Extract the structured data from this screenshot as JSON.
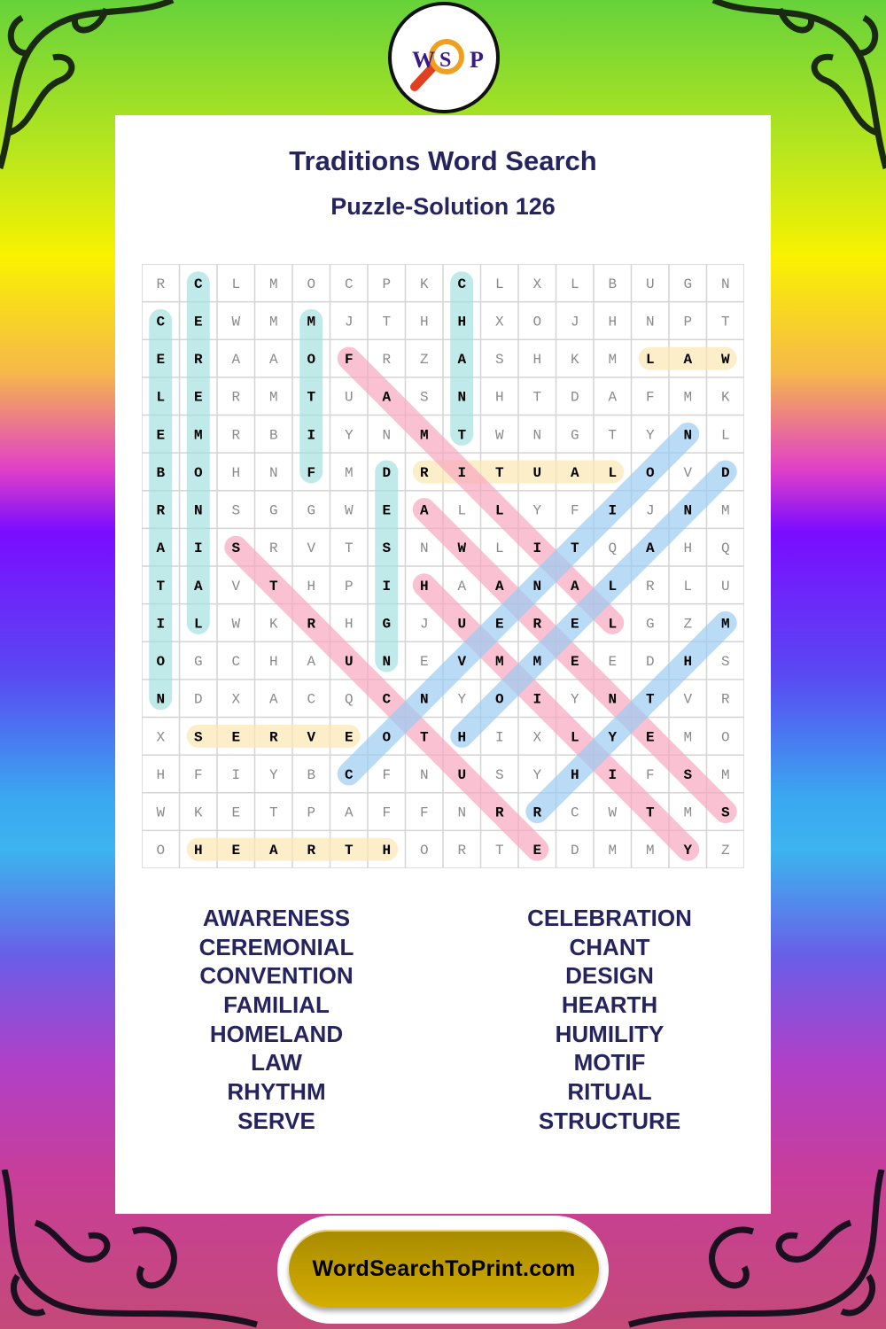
{
  "header": {
    "logo": {
      "letters": [
        "W",
        "S",
        "P"
      ],
      "icon": "magnifier-icon",
      "letter_color": "#3a1a8a",
      "ring_color": "#f0a020",
      "handle_color": "#e04020"
    },
    "title": "Traditions Word Search",
    "subtitle": "Puzzle-Solution 126"
  },
  "puzzle": {
    "rows": [
      "RCLMOCPKCLXLBUGN",
      "CEWMMJTHHXOJHNPT",
      "ERAAOFRZASHKMLAW",
      "LERMTUASNHTDAFMK",
      "EMRBIYNMTWNGTYNL",
      "BOHNFMDRITUALOVD",
      "RNSGGWEALLYFIJNM",
      "AISRVTSNWLITQAHQ",
      "TAVTHPIHAANALRLU",
      "ILWKRHGJUERELGZM",
      "OGCHAUNEVMMEEDHS",
      "NDXACQCNYOIYNTVR",
      "XSERVEOTHIXLYEMO",
      "HFIYBCFNUSYHIFSM",
      "WKETPAFFNRRCWTMS",
      "OHEARTHORTEDMMYZ"
    ],
    "highlight_colors": {
      "teal": "#a6e0e0",
      "yellow": "#fde7b4",
      "pink": "#f7a8c0",
      "blue": "#9cccf2"
    },
    "solutions": [
      {
        "word": "CELEBRATION",
        "start": [
          2,
          1
        ],
        "end": [
          12,
          1
        ],
        "color": "teal"
      },
      {
        "word": "CEREMONIAL",
        "start": [
          1,
          2
        ],
        "end": [
          10,
          2
        ],
        "color": "teal"
      },
      {
        "word": "MOTIF",
        "start": [
          2,
          5
        ],
        "end": [
          6,
          5
        ],
        "color": "teal"
      },
      {
        "word": "CHANT",
        "start": [
          1,
          9
        ],
        "end": [
          5,
          9
        ],
        "color": "teal"
      },
      {
        "word": "DESIGN",
        "start": [
          6,
          7
        ],
        "end": [
          11,
          7
        ],
        "color": "teal"
      },
      {
        "word": "LAW",
        "start": [
          3,
          14
        ],
        "end": [
          3,
          16
        ],
        "color": "yellow"
      },
      {
        "word": "RITUAL",
        "start": [
          6,
          8
        ],
        "end": [
          6,
          13
        ],
        "color": "yellow"
      },
      {
        "word": "SERVE",
        "start": [
          13,
          2
        ],
        "end": [
          13,
          6
        ],
        "color": "yellow"
      },
      {
        "word": "HEARTH",
        "start": [
          16,
          2
        ],
        "end": [
          16,
          7
        ],
        "color": "yellow"
      },
      {
        "word": "FAMILIAL",
        "start": [
          3,
          6
        ],
        "end": [
          10,
          13
        ],
        "color": "pink"
      },
      {
        "word": "STRUCTURE",
        "start": [
          8,
          3
        ],
        "end": [
          16,
          11
        ],
        "color": "pink"
      },
      {
        "word": "HUMILITY",
        "start": [
          9,
          8
        ],
        "end": [
          16,
          15
        ],
        "color": "pink"
      },
      {
        "word": "AWARENESS",
        "start": [
          7,
          8
        ],
        "end": [
          15,
          16
        ],
        "color": "pink"
      },
      {
        "word": "CONVENTION",
        "start": [
          14,
          6
        ],
        "end": [
          5,
          15
        ],
        "color": "blue"
      },
      {
        "word": "HOMELAND",
        "start": [
          13,
          9
        ],
        "end": [
          6,
          16
        ],
        "color": "blue"
      },
      {
        "word": "RHYTHM",
        "start": [
          15,
          11
        ],
        "end": [
          10,
          16
        ],
        "color": "blue"
      }
    ]
  },
  "word_list": {
    "left": [
      "AWARENESS",
      "CEREMONIAL",
      "CONVENTION",
      "FAMILIAL",
      "HOMELAND",
      "LAW",
      "RHYTHM",
      "SERVE"
    ],
    "right": [
      "CELEBRATION",
      "CHANT",
      "DESIGN",
      "HEARTH",
      "HUMILITY",
      "MOTIF",
      "RITUAL",
      "STRUCTURE"
    ]
  },
  "footer": {
    "site": "WordSearchToPrint.com"
  }
}
